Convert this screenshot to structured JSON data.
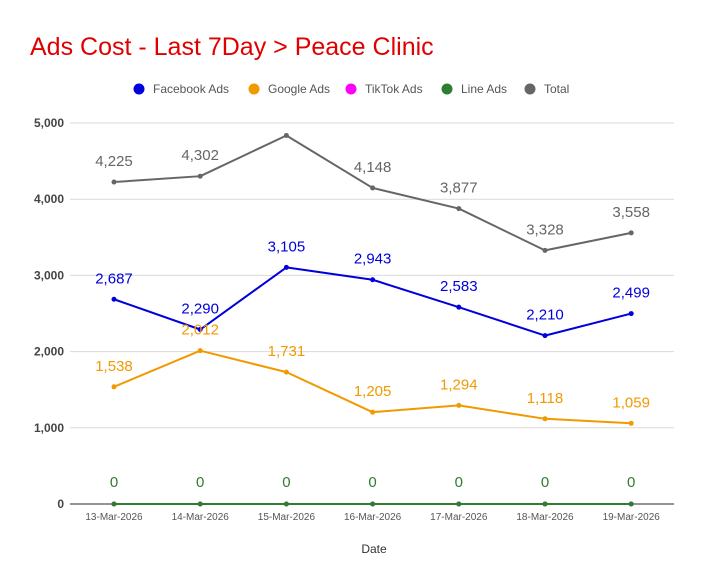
{
  "chart_data": {
    "type": "line",
    "title": "Ads Cost - Last 7Day > Peace Clinic",
    "xlabel": "Date",
    "ylabel": "",
    "ylim": [
      0,
      5000
    ],
    "yticks": [
      0,
      1000,
      2000,
      3000,
      4000,
      5000
    ],
    "ytick_labels": [
      "0",
      "1,000",
      "2,000",
      "3,000",
      "4,000",
      "5,000"
    ],
    "grid": true,
    "legend_position": "top",
    "categories": [
      "13-Mar-2026",
      "14-Mar-2026",
      "15-Mar-2026",
      "16-Mar-2026",
      "17-Mar-2026",
      "18-Mar-2026",
      "19-Mar-2026"
    ],
    "series": [
      {
        "name": "Facebook Ads",
        "color": "#0000dd",
        "values": [
          2687,
          2290,
          3105,
          2943,
          2583,
          2210,
          2499
        ],
        "labels": [
          "2,687",
          "2,290",
          "3,105",
          "2,943",
          "2,583",
          "2,210",
          "2,499"
        ]
      },
      {
        "name": "Google Ads",
        "color": "#f29900",
        "values": [
          1538,
          2012,
          1731,
          1205,
          1294,
          1118,
          1059
        ],
        "labels": [
          "1,538",
          "2,012",
          "1,731",
          "1,205",
          "1,294",
          "1,118",
          "1,059"
        ]
      },
      {
        "name": "TikTok Ads",
        "color": "#ff00ff",
        "values": [
          0,
          0,
          0,
          0,
          0,
          0,
          0
        ],
        "labels": []
      },
      {
        "name": "Line Ads",
        "color": "#2e7d32",
        "values": [
          0,
          0,
          0,
          0,
          0,
          0,
          0
        ],
        "labels": [
          "0",
          "0",
          "0",
          "0",
          "0",
          "0",
          "0"
        ]
      },
      {
        "name": "Total",
        "color": "#666666",
        "values": [
          4225,
          4302,
          4836,
          4148,
          3877,
          3328,
          3558
        ],
        "labels": [
          "4,225",
          "4,302",
          "",
          "4,148",
          "3,877",
          "3,328",
          "3,558"
        ]
      }
    ],
    "colors": {
      "title": "#e00000",
      "grid": "#d9d9d9",
      "axis_text": "#555555",
      "legend_text": "#555555"
    }
  }
}
